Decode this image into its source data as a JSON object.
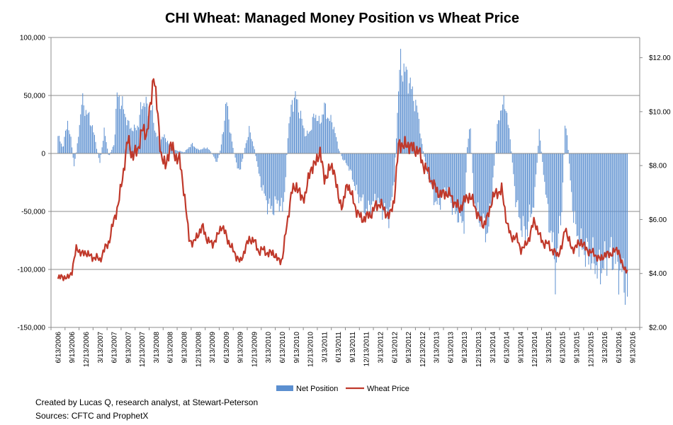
{
  "chart_data": {
    "type": "bar+line",
    "title": "CHI Wheat: Managed Money Position vs Wheat Price",
    "left_axis": {
      "ylim": [
        -150000,
        100000
      ],
      "ticks": [
        100000,
        50000,
        0,
        -50000,
        -100000,
        -150000
      ],
      "tick_labels": [
        "100,000",
        "50,000",
        "0",
        "-50,000",
        "-100,000",
        "-150,000"
      ]
    },
    "right_axis": {
      "ylim": [
        2,
        12.75
      ],
      "ticks": [
        2,
        4,
        6,
        8,
        10,
        12
      ],
      "tick_labels": [
        "$2.00",
        "$4.00",
        "$6.00",
        "$8.00",
        "$10.00",
        "$12.00"
      ]
    },
    "x_axis": {
      "tick_labels": [
        "6/13/2006",
        "9/13/2006",
        "12/13/2006",
        "3/13/2007",
        "6/13/2007",
        "9/13/2007",
        "12/13/2007",
        "3/13/2008",
        "6/13/2008",
        "9/13/2008",
        "12/13/2008",
        "3/13/2009",
        "6/13/2009",
        "9/13/2009",
        "12/13/2009",
        "3/13/2010",
        "6/13/2010",
        "9/13/2010",
        "12/13/2010",
        "3/13/2011",
        "6/13/2011",
        "9/13/2011",
        "12/13/2011",
        "3/13/2012",
        "6/13/2012",
        "9/13/2012",
        "12/13/2012",
        "3/13/2013",
        "6/13/2013",
        "9/13/2013",
        "12/13/2013",
        "3/13/2014",
        "6/13/2014",
        "9/13/2014",
        "12/13/2014",
        "3/13/2015",
        "6/13/2015",
        "9/13/2015",
        "12/13/2015",
        "3/13/2016",
        "6/13/2016",
        "9/13/2016"
      ]
    },
    "grid": "horizontal",
    "legend_position": "bottom",
    "series": [
      {
        "name": "Net Position",
        "type": "bar",
        "axis": "left",
        "color": "#5b8fd0",
        "keyframes": [
          [
            "2006-06-13",
            15000
          ],
          [
            "2006-07-15",
            5000
          ],
          [
            "2006-08-15",
            28000
          ],
          [
            "2006-09-10",
            8000
          ],
          [
            "2006-09-25",
            -12000
          ],
          [
            "2006-10-15",
            5000
          ],
          [
            "2006-11-15",
            45000
          ],
          [
            "2006-12-15",
            36000
          ],
          [
            "2007-01-20",
            25000
          ],
          [
            "2007-02-20",
            5000
          ],
          [
            "2007-03-13",
            -8000
          ],
          [
            "2007-04-10",
            20000
          ],
          [
            "2007-05-10",
            -3000
          ],
          [
            "2007-06-13",
            8000
          ],
          [
            "2007-07-05",
            52000
          ],
          [
            "2007-08-10",
            40000
          ],
          [
            "2007-09-13",
            25000
          ],
          [
            "2007-10-20",
            20000
          ],
          [
            "2007-11-20",
            25000
          ],
          [
            "2007-12-13",
            45000
          ],
          [
            "2008-01-20",
            40000
          ],
          [
            "2008-02-20",
            35000
          ],
          [
            "2008-03-13",
            15000
          ],
          [
            "2008-04-10",
            12000
          ],
          [
            "2008-05-10",
            15000
          ],
          [
            "2008-06-13",
            5000
          ],
          [
            "2008-07-13",
            3000
          ],
          [
            "2008-08-15",
            2000
          ],
          [
            "2008-09-13",
            1000
          ],
          [
            "2008-11-01",
            8000
          ],
          [
            "2008-12-13",
            3000
          ],
          [
            "2009-02-10",
            5000
          ],
          [
            "2009-03-13",
            0
          ],
          [
            "2009-04-15",
            -8000
          ],
          [
            "2009-05-10",
            5000
          ],
          [
            "2009-06-15",
            45000
          ],
          [
            "2009-07-20",
            10000
          ],
          [
            "2009-08-20",
            -10000
          ],
          [
            "2009-09-13",
            -15000
          ],
          [
            "2009-10-13",
            5000
          ],
          [
            "2009-11-10",
            20000
          ],
          [
            "2009-12-13",
            5000
          ],
          [
            "2010-01-15",
            -20000
          ],
          [
            "2010-02-15",
            -35000
          ],
          [
            "2010-03-13",
            -45000
          ],
          [
            "2010-04-15",
            -48000
          ],
          [
            "2010-05-15",
            -40000
          ],
          [
            "2010-06-13",
            -50000
          ],
          [
            "2010-07-01",
            -30000
          ],
          [
            "2010-07-20",
            15000
          ],
          [
            "2010-08-15",
            45000
          ],
          [
            "2010-09-13",
            48000
          ],
          [
            "2010-10-15",
            30000
          ],
          [
            "2010-11-15",
            15000
          ],
          [
            "2010-12-13",
            20000
          ],
          [
            "2011-01-13",
            35000
          ],
          [
            "2011-02-13",
            25000
          ],
          [
            "2011-03-13",
            40000
          ],
          [
            "2011-04-13",
            30000
          ],
          [
            "2011-05-13",
            25000
          ],
          [
            "2011-06-13",
            5000
          ],
          [
            "2011-07-13",
            -5000
          ],
          [
            "2011-08-13",
            -10000
          ],
          [
            "2011-09-13",
            -20000
          ],
          [
            "2011-10-13",
            -35000
          ],
          [
            "2011-11-13",
            -40000
          ],
          [
            "2011-12-13",
            -50000
          ],
          [
            "2012-01-13",
            -45000
          ],
          [
            "2012-02-13",
            -40000
          ],
          [
            "2012-03-13",
            -45000
          ],
          [
            "2012-04-13",
            -50000
          ],
          [
            "2012-05-13",
            -55000
          ],
          [
            "2012-06-13",
            -20000
          ],
          [
            "2012-07-01",
            30000
          ],
          [
            "2012-07-20",
            78000
          ],
          [
            "2012-08-13",
            72000
          ],
          [
            "2012-09-13",
            65000
          ],
          [
            "2012-10-13",
            50000
          ],
          [
            "2012-11-13",
            35000
          ],
          [
            "2012-12-13",
            5000
          ],
          [
            "2013-01-13",
            -15000
          ],
          [
            "2013-02-13",
            -30000
          ],
          [
            "2013-03-13",
            -45000
          ],
          [
            "2013-04-13",
            -40000
          ],
          [
            "2013-05-13",
            -30000
          ],
          [
            "2013-06-13",
            -40000
          ],
          [
            "2013-07-13",
            -50000
          ],
          [
            "2013-08-13",
            -55000
          ],
          [
            "2013-09-13",
            -60000
          ],
          [
            "2013-10-01",
            5000
          ],
          [
            "2013-10-20",
            25000
          ],
          [
            "2013-11-13",
            -40000
          ],
          [
            "2013-12-13",
            -55000
          ],
          [
            "2014-01-13",
            -60000
          ],
          [
            "2014-02-13",
            -70000
          ],
          [
            "2014-03-13",
            -30000
          ],
          [
            "2014-04-13",
            20000
          ],
          [
            "2014-05-13",
            42000
          ],
          [
            "2014-06-13",
            40000
          ],
          [
            "2014-07-13",
            5000
          ],
          [
            "2014-08-13",
            -40000
          ],
          [
            "2014-09-13",
            -60000
          ],
          [
            "2014-10-13",
            -70000
          ],
          [
            "2014-11-13",
            -55000
          ],
          [
            "2014-12-13",
            -40000
          ],
          [
            "2015-01-13",
            20000
          ],
          [
            "2015-02-13",
            -20000
          ],
          [
            "2015-03-13",
            -55000
          ],
          [
            "2015-04-13",
            -80000
          ],
          [
            "2015-05-01",
            -105000
          ],
          [
            "2015-05-20",
            -70000
          ],
          [
            "2015-06-13",
            -40000
          ],
          [
            "2015-07-01",
            30000
          ],
          [
            "2015-07-20",
            5000
          ],
          [
            "2015-08-13",
            -40000
          ],
          [
            "2015-09-13",
            -70000
          ],
          [
            "2015-10-13",
            -80000
          ],
          [
            "2015-11-13",
            -85000
          ],
          [
            "2015-12-13",
            -90000
          ],
          [
            "2016-01-13",
            -95000
          ],
          [
            "2016-02-13",
            -100000
          ],
          [
            "2016-03-13",
            -95000
          ],
          [
            "2016-04-13",
            -85000
          ],
          [
            "2016-05-13",
            -90000
          ],
          [
            "2016-06-13",
            -100000
          ],
          [
            "2016-07-13",
            -105000
          ],
          [
            "2016-08-01",
            -115000
          ],
          [
            "2016-08-09",
            -128000
          ],
          [
            "2016-08-15",
            -120000
          ]
        ]
      },
      {
        "name": "Wheat Price",
        "type": "line",
        "axis": "right",
        "color": "#c0392b",
        "keyframes": [
          [
            "2006-06-13",
            3.8
          ],
          [
            "2006-07-13",
            3.9
          ],
          [
            "2006-08-13",
            3.8
          ],
          [
            "2006-09-13",
            4.1
          ],
          [
            "2006-10-13",
            5.0
          ],
          [
            "2006-11-13",
            4.7
          ],
          [
            "2006-12-13",
            4.8
          ],
          [
            "2007-01-13",
            4.6
          ],
          [
            "2007-02-13",
            4.6
          ],
          [
            "2007-03-13",
            4.5
          ],
          [
            "2007-04-13",
            4.9
          ],
          [
            "2007-05-13",
            5.2
          ],
          [
            "2007-06-13",
            6.0
          ],
          [
            "2007-07-13",
            6.6
          ],
          [
            "2007-08-13",
            7.8
          ],
          [
            "2007-09-13",
            9.0
          ],
          [
            "2007-10-13",
            8.3
          ],
          [
            "2007-11-13",
            8.6
          ],
          [
            "2007-12-13",
            9.3
          ],
          [
            "2008-01-13",
            9.2
          ],
          [
            "2008-02-13",
            10.5
          ],
          [
            "2008-02-27",
            11.6
          ],
          [
            "2008-03-13",
            10.5
          ],
          [
            "2008-04-13",
            8.5
          ],
          [
            "2008-05-13",
            7.9
          ],
          [
            "2008-06-13",
            8.8
          ],
          [
            "2008-07-13",
            8.4
          ],
          [
            "2008-08-13",
            8.2
          ],
          [
            "2008-09-13",
            7.0
          ],
          [
            "2008-10-13",
            5.3
          ],
          [
            "2008-11-13",
            5.1
          ],
          [
            "2008-12-13",
            5.5
          ],
          [
            "2009-01-13",
            5.7
          ],
          [
            "2009-02-13",
            5.2
          ],
          [
            "2009-03-13",
            5.1
          ],
          [
            "2009-04-13",
            5.3
          ],
          [
            "2009-05-13",
            5.8
          ],
          [
            "2009-06-13",
            5.4
          ],
          [
            "2009-07-13",
            5.0
          ],
          [
            "2009-08-13",
            4.7
          ],
          [
            "2009-09-13",
            4.4
          ],
          [
            "2009-10-13",
            4.9
          ],
          [
            "2009-11-13",
            5.3
          ],
          [
            "2009-12-13",
            5.2
          ],
          [
            "2010-01-13",
            4.8
          ],
          [
            "2010-02-13",
            4.9
          ],
          [
            "2010-03-13",
            4.7
          ],
          [
            "2010-04-13",
            4.8
          ],
          [
            "2010-05-13",
            4.5
          ],
          [
            "2010-06-13",
            4.5
          ],
          [
            "2010-07-13",
            5.8
          ],
          [
            "2010-08-13",
            7.0
          ],
          [
            "2010-09-13",
            7.3
          ],
          [
            "2010-10-13",
            6.8
          ],
          [
            "2010-11-13",
            6.9
          ],
          [
            "2010-12-13",
            7.9
          ],
          [
            "2011-01-13",
            8.0
          ],
          [
            "2011-02-13",
            8.6
          ],
          [
            "2011-03-13",
            7.5
          ],
          [
            "2011-04-13",
            7.8
          ],
          [
            "2011-05-13",
            8.0
          ],
          [
            "2011-06-13",
            6.8
          ],
          [
            "2011-07-13",
            6.5
          ],
          [
            "2011-08-13",
            7.4
          ],
          [
            "2011-09-13",
            6.8
          ],
          [
            "2011-10-13",
            6.3
          ],
          [
            "2011-11-13",
            6.0
          ],
          [
            "2011-12-13",
            6.1
          ],
          [
            "2012-01-13",
            6.2
          ],
          [
            "2012-02-13",
            6.5
          ],
          [
            "2012-03-13",
            6.6
          ],
          [
            "2012-04-13",
            6.3
          ],
          [
            "2012-05-13",
            6.1
          ],
          [
            "2012-06-13",
            6.8
          ],
          [
            "2012-07-13",
            8.9
          ],
          [
            "2012-08-13",
            8.7
          ],
          [
            "2012-09-13",
            8.8
          ],
          [
            "2012-10-13",
            8.6
          ],
          [
            "2012-11-13",
            8.6
          ],
          [
            "2012-12-13",
            8.1
          ],
          [
            "2013-01-13",
            7.8
          ],
          [
            "2013-02-13",
            7.4
          ],
          [
            "2013-03-13",
            7.1
          ],
          [
            "2013-04-13",
            6.9
          ],
          [
            "2013-05-13",
            7.0
          ],
          [
            "2013-06-13",
            6.9
          ],
          [
            "2013-07-13",
            6.6
          ],
          [
            "2013-08-13",
            6.4
          ],
          [
            "2013-09-13",
            6.7
          ],
          [
            "2013-10-13",
            6.9
          ],
          [
            "2013-11-13",
            6.6
          ],
          [
            "2013-12-13",
            6.1
          ],
          [
            "2014-01-13",
            5.8
          ],
          [
            "2014-02-13",
            6.1
          ],
          [
            "2014-03-13",
            6.8
          ],
          [
            "2014-04-13",
            7.0
          ],
          [
            "2014-05-13",
            7.1
          ],
          [
            "2014-06-13",
            6.0
          ],
          [
            "2014-07-13",
            5.3
          ],
          [
            "2014-08-13",
            5.4
          ],
          [
            "2014-09-13",
            4.9
          ],
          [
            "2014-10-13",
            5.0
          ],
          [
            "2014-11-13",
            5.4
          ],
          [
            "2014-12-13",
            6.0
          ],
          [
            "2015-01-13",
            5.4
          ],
          [
            "2015-02-13",
            5.1
          ],
          [
            "2015-03-13",
            5.1
          ],
          [
            "2015-04-13",
            4.8
          ],
          [
            "2015-05-13",
            4.7
          ],
          [
            "2015-06-13",
            5.0
          ],
          [
            "2015-07-01",
            5.8
          ],
          [
            "2015-07-20",
            5.3
          ],
          [
            "2015-08-13",
            4.9
          ],
          [
            "2015-09-13",
            5.0
          ],
          [
            "2015-10-13",
            5.2
          ],
          [
            "2015-11-13",
            4.9
          ],
          [
            "2015-12-13",
            4.8
          ],
          [
            "2016-01-13",
            4.7
          ],
          [
            "2016-02-13",
            4.5
          ],
          [
            "2016-03-13",
            4.7
          ],
          [
            "2016-04-13",
            4.7
          ],
          [
            "2016-05-13",
            4.8
          ],
          [
            "2016-06-13",
            4.9
          ],
          [
            "2016-07-01",
            4.4
          ],
          [
            "2016-07-13",
            4.2
          ],
          [
            "2016-08-13",
            4.15
          ]
        ]
      }
    ],
    "legend": [
      {
        "name": "Net Position",
        "color": "#5b8fd0",
        "marker": "bar"
      },
      {
        "name": "Wheat Price",
        "color": "#c0392b",
        "marker": "line"
      }
    ]
  },
  "footer": {
    "credit": "Created by Lucas Q, research analyst, at Stewart-Peterson",
    "sources": "Sources: CFTC and ProphetX"
  }
}
